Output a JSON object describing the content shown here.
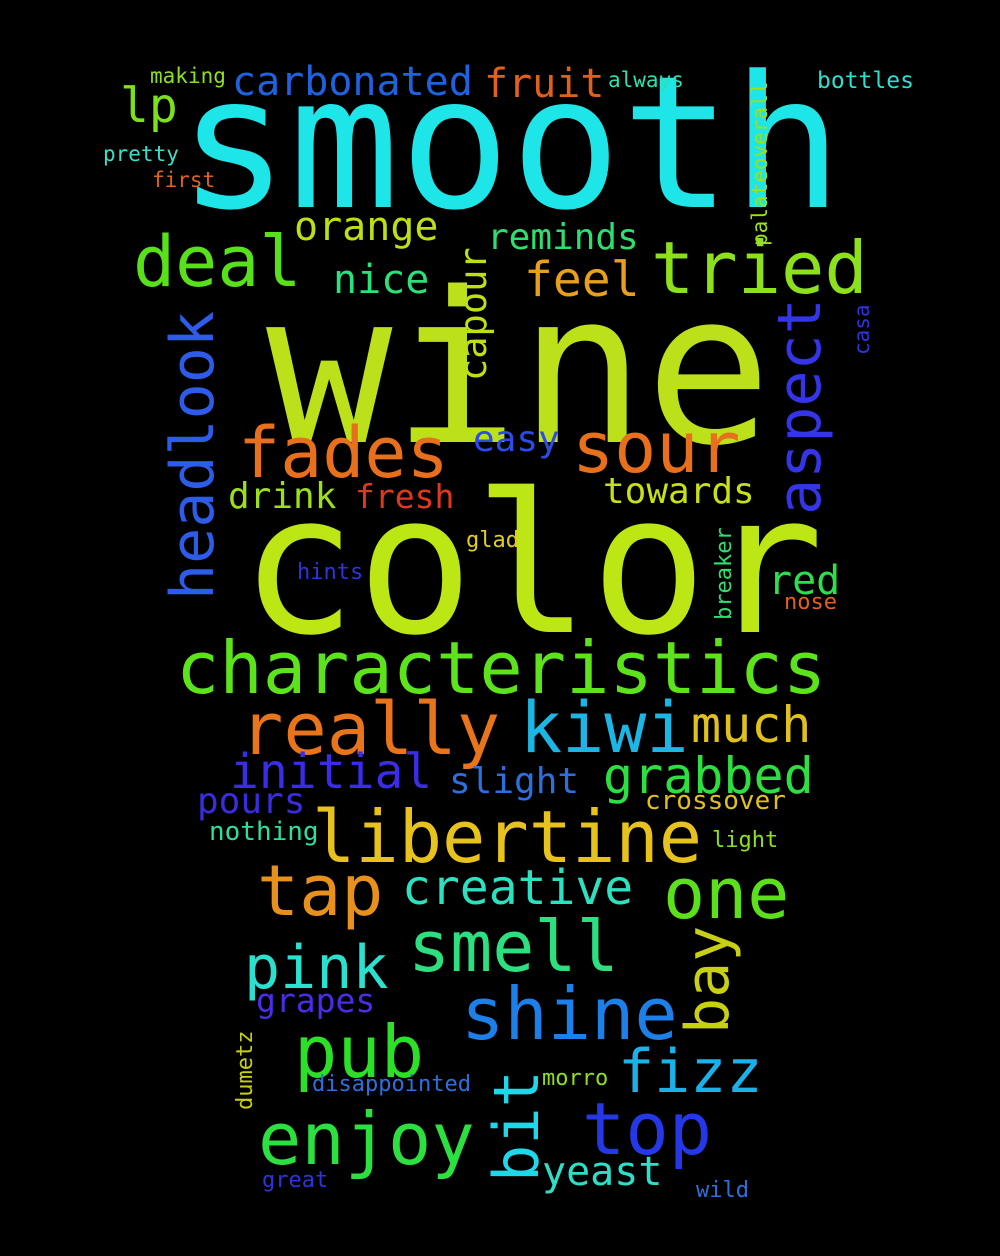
{
  "words": {
    "smooth": {
      "text": "smooth",
      "color": "#1ee5e8"
    },
    "wine": {
      "text": "wine",
      "color": "#bce01a"
    },
    "color": {
      "text": "color",
      "color": "#bce614"
    },
    "characteristics": {
      "text": "characteristics",
      "color": "#5ce31c"
    },
    "libertine": {
      "text": "libertine",
      "color": "#e8c21c"
    },
    "really": {
      "text": "really",
      "color": "#e8741c"
    },
    "kiwi": {
      "text": "kiwi",
      "color": "#1cb6e4"
    },
    "deal": {
      "text": "deal",
      "color": "#58e01a"
    },
    "tried": {
      "text": "tried",
      "color": "#8ce01c"
    },
    "fades": {
      "text": "fades",
      "color": "#e8701c"
    },
    "sour": {
      "text": "sour",
      "color": "#e8701c"
    },
    "headlook": {
      "text": "headlook",
      "color": "#2c5ce8"
    },
    "aspect": {
      "text": "aspect",
      "color": "#3434e8"
    },
    "carbonated": {
      "text": "carbonated",
      "color": "#1e62e0"
    },
    "fruit": {
      "text": "fruit",
      "color": "#e0601c"
    },
    "lp": {
      "text": "lp",
      "color": "#7ce01a"
    },
    "making": {
      "text": "making",
      "color": "#8ce01c"
    },
    "pretty": {
      "text": "pretty",
      "color": "#3ae0c8"
    },
    "first": {
      "text": "first",
      "color": "#e0601c"
    },
    "always": {
      "text": "always",
      "color": "#2ce0b0"
    },
    "bottles": {
      "text": "bottles",
      "color": "#2ce0d0"
    },
    "palateoverall": {
      "text": "palateoverall",
      "color": "#9ce01c"
    },
    "casa": {
      "text": "casa",
      "color": "#2c34e0"
    },
    "orange": {
      "text": "orange",
      "color": "#bce014"
    },
    "reminds": {
      "text": "reminds",
      "color": "#2ce070"
    },
    "nice": {
      "text": "nice",
      "color": "#2ce07a"
    },
    "feel": {
      "text": "feel",
      "color": "#e8a01c"
    },
    "capour": {
      "text": "capour",
      "color": "#bce014"
    },
    "easy": {
      "text": "easy",
      "color": "#2c4ce8"
    },
    "drink": {
      "text": "drink",
      "color": "#9ce01c"
    },
    "fresh": {
      "text": "fresh",
      "color": "#e0381c"
    },
    "towards": {
      "text": "towards",
      "color": "#c8e014"
    },
    "glad": {
      "text": "glad",
      "color": "#e0d01c"
    },
    "hints": {
      "text": "hints",
      "color": "#2c34e0"
    },
    "breaker": {
      "text": "breaker",
      "color": "#2ce070"
    },
    "red": {
      "text": "red",
      "color": "#2ce04c"
    },
    "nose": {
      "text": "nose",
      "color": "#e0601c"
    },
    "much": {
      "text": "much",
      "color": "#e0c01c"
    },
    "initial": {
      "text": "initial",
      "color": "#3a2ce8"
    },
    "slight": {
      "text": "slight",
      "color": "#2c70e0"
    },
    "grabbed": {
      "text": "grabbed",
      "color": "#2ce040"
    },
    "pours": {
      "text": "pours",
      "color": "#3a2ce0"
    },
    "crossover": {
      "text": "crossover",
      "color": "#e0c01c"
    },
    "nothing": {
      "text": "nothing",
      "color": "#2ce09a"
    },
    "light": {
      "text": "light",
      "color": "#8ce01c"
    },
    "tap": {
      "text": "tap",
      "color": "#e8901c"
    },
    "creative": {
      "text": "creative",
      "color": "#2ce0c0"
    },
    "one": {
      "text": "one",
      "color": "#5ce01c"
    },
    "smell": {
      "text": "smell",
      "color": "#2ce080"
    },
    "bay": {
      "text": "bay",
      "color": "#c8d014"
    },
    "pink": {
      "text": "pink",
      "color": "#2ce0d0"
    },
    "grapes": {
      "text": "grapes",
      "color": "#4c2ce8"
    },
    "shine": {
      "text": "shine",
      "color": "#1c80e8"
    },
    "pub": {
      "text": "pub",
      "color": "#2ce028"
    },
    "fizz": {
      "text": "fizz",
      "color": "#1cb0e8"
    },
    "dumetz": {
      "text": "dumetz",
      "color": "#c8d014"
    },
    "enjoy": {
      "text": "enjoy",
      "color": "#2ce040"
    },
    "bit": {
      "text": "bit",
      "color": "#1cd8e8"
    },
    "top": {
      "text": "top",
      "color": "#2438e8"
    },
    "disappointed": {
      "text": "disappointed",
      "color": "#2c70e0"
    },
    "morro": {
      "text": "morro",
      "color": "#8ce01c"
    },
    "yeast": {
      "text": "yeast",
      "color": "#2ce0c8"
    },
    "great": {
      "text": "great",
      "color": "#2c34e0"
    },
    "wild": {
      "text": "wild",
      "color": "#2c70e0"
    }
  }
}
